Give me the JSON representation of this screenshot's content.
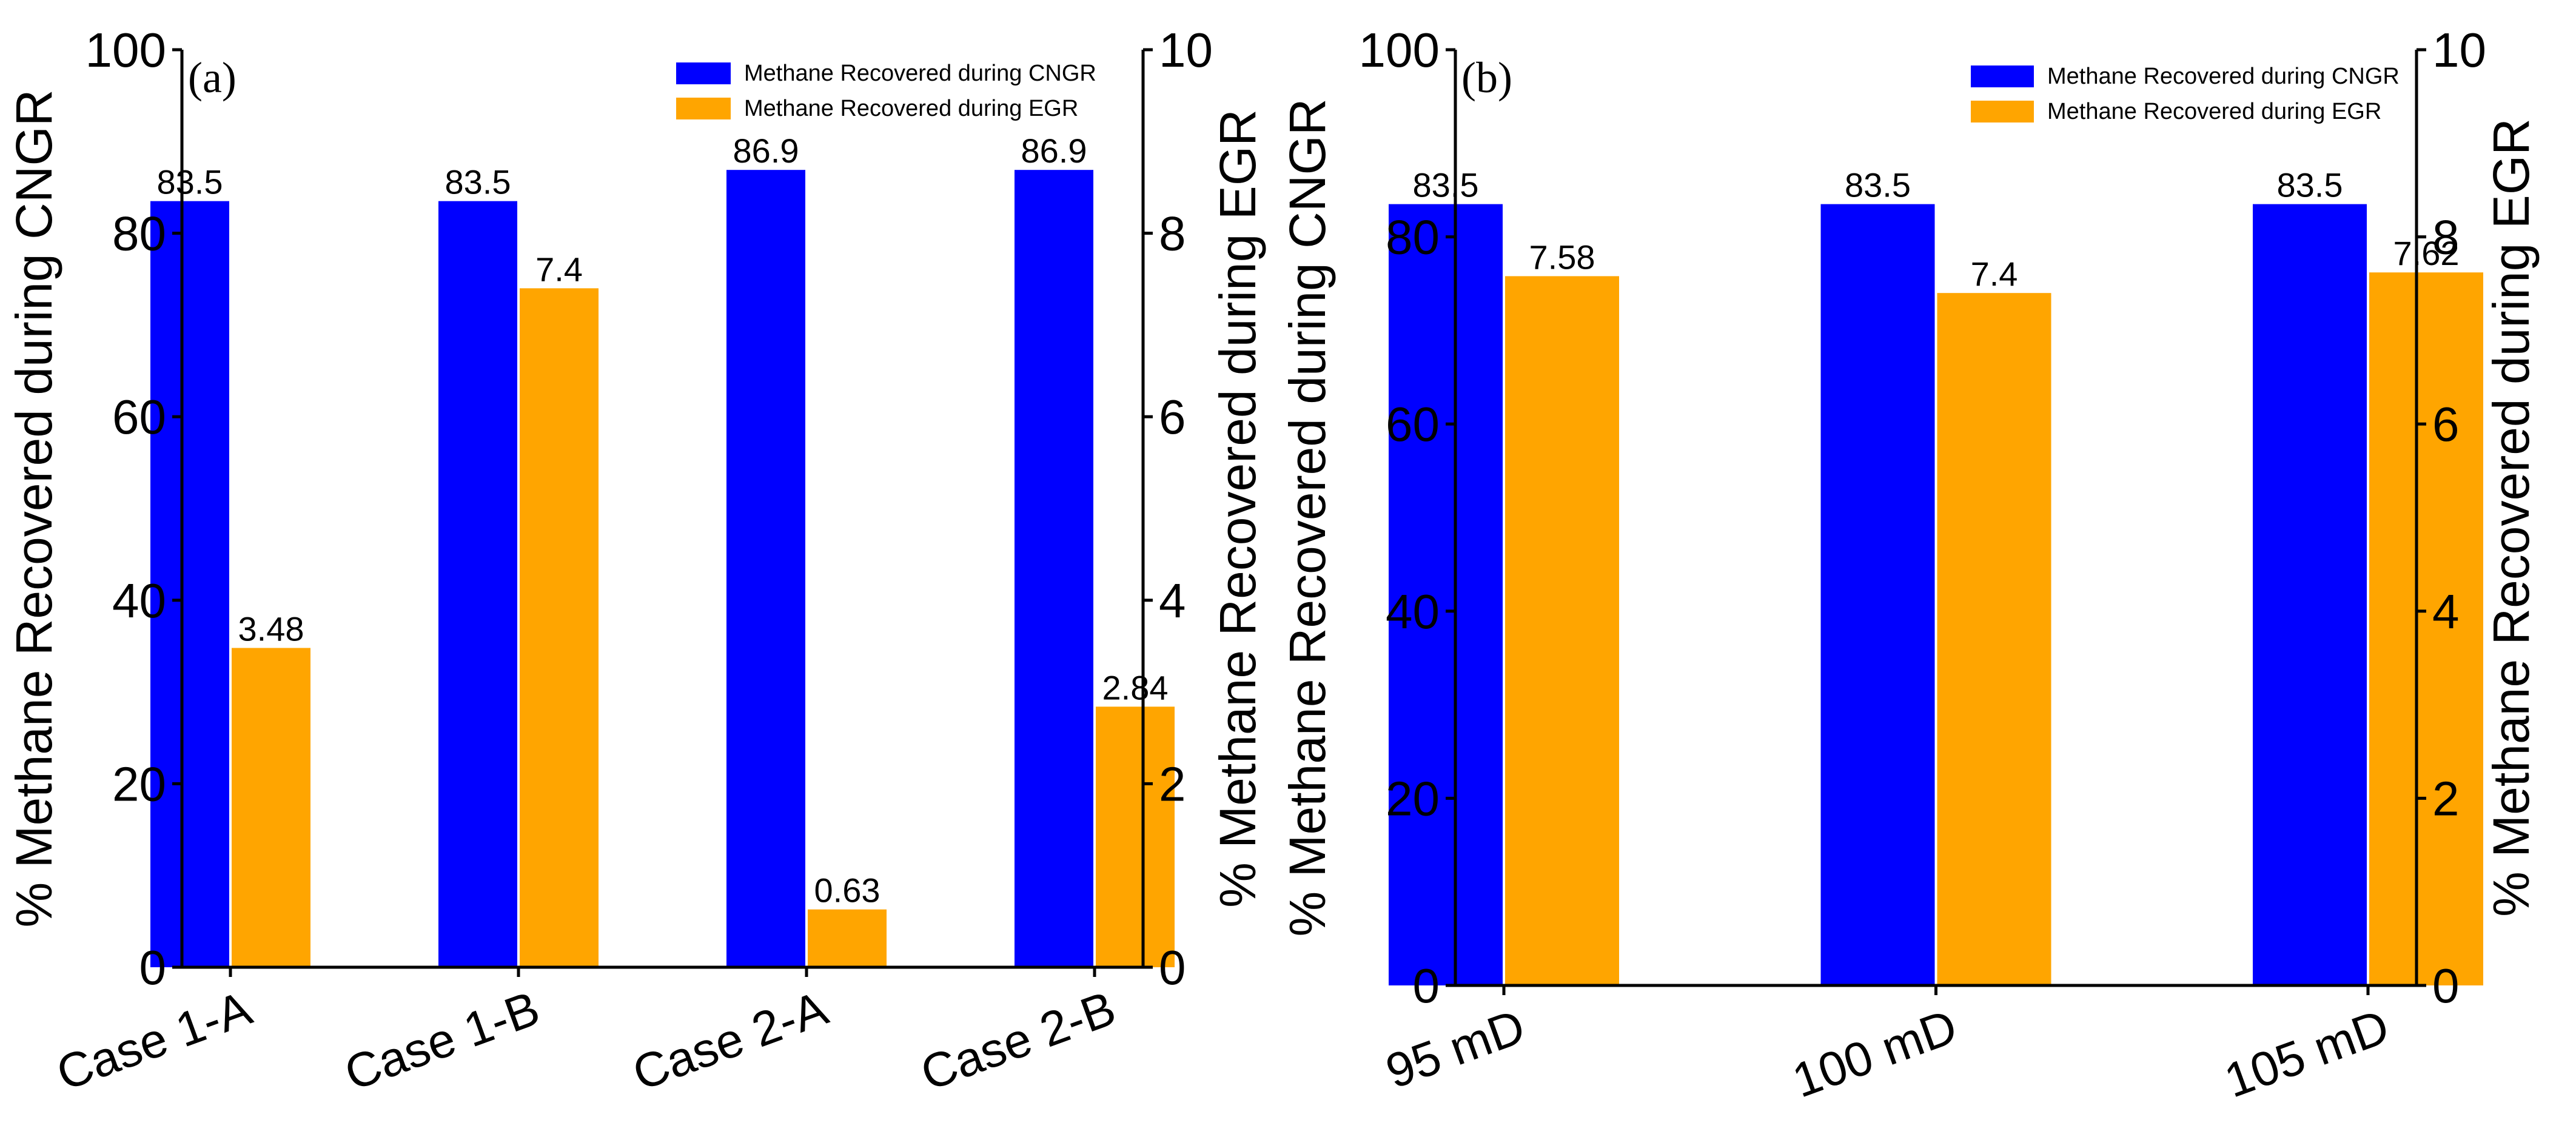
{
  "colors": {
    "cngr": "#0000FF",
    "egr": "#FFA500"
  },
  "chart_data": [
    {
      "type": "bar",
      "panel": "(a)",
      "categories": [
        "Case 1-A",
        "Case 1-B",
        "Case 2-A",
        "Case 2-B"
      ],
      "series": [
        {
          "name": "Methane Recovered during CNGR",
          "axis": "left",
          "color": "#0000FF",
          "values": [
            83.5,
            83.5,
            86.9,
            86.9
          ],
          "labels": [
            "83.5",
            "83.5",
            "86.9",
            "86.9"
          ]
        },
        {
          "name": "Methane Recovered during EGR",
          "axis": "right",
          "color": "#FFA500",
          "values": [
            3.48,
            7.4,
            0.63,
            2.84
          ],
          "labels": [
            "3.48",
            "7.4",
            "0.63",
            "2.84"
          ]
        }
      ],
      "ylabel_left": "% Methane Recovered during CNGR",
      "ylabel_right": "% Methane Recovered during EGR",
      "ylim_left": [
        0,
        100
      ],
      "ylim_right": [
        0,
        10
      ],
      "yticks_left": [
        "0",
        "20",
        "40",
        "60",
        "80",
        "100"
      ],
      "yticks_right": [
        "0",
        "2",
        "4",
        "6",
        "8",
        "10"
      ],
      "legend_loc": "top-right"
    },
    {
      "type": "bar",
      "panel": "(b)",
      "categories": [
        "95 mD",
        "100 mD",
        "105 mD"
      ],
      "series": [
        {
          "name": "Methane Recovered during CNGR",
          "axis": "left",
          "color": "#0000FF",
          "values": [
            83.5,
            83.5,
            83.5
          ],
          "labels": [
            "83.5",
            "83.5",
            "83.5"
          ]
        },
        {
          "name": "Methane Recovered during EGR",
          "axis": "right",
          "color": "#FFA500",
          "values": [
            7.58,
            7.4,
            7.62
          ],
          "labels": [
            "7.58",
            "7.4",
            "7.62"
          ]
        }
      ],
      "ylabel_left": "% Methane Recovered during CNGR",
      "ylabel_right": "% Methane Recovered during EGR",
      "ylim_left": [
        0,
        100
      ],
      "ylim_right": [
        0,
        10
      ],
      "yticks_left": [
        "0",
        "20",
        "40",
        "60",
        "80",
        "100"
      ],
      "yticks_right": [
        "0",
        "2",
        "4",
        "6",
        "8",
        "10"
      ],
      "legend_loc": "top-right"
    }
  ]
}
